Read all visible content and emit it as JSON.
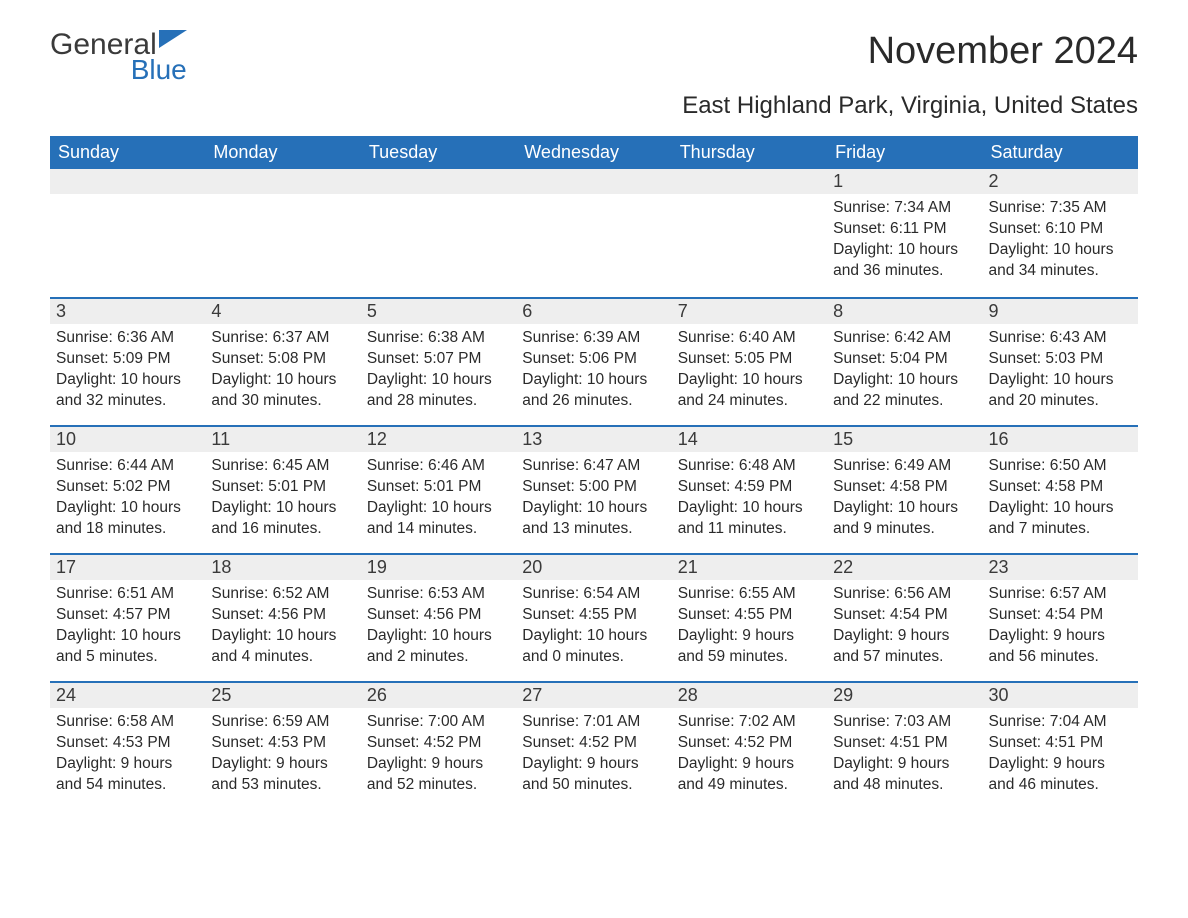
{
  "logo": {
    "line1": "General",
    "line2": "Blue"
  },
  "title": "November 2024",
  "subtitle": "East Highland Park, Virginia, United States",
  "colors": {
    "header_bg": "#2670b8",
    "header_text": "#ffffff",
    "daynum_bg": "#eeeeee",
    "daynum_border": "#2670b8",
    "body_text": "#2a2a2a",
    "logo_gray": "#3a3a3a",
    "logo_blue": "#2670b8",
    "page_bg": "#ffffff"
  },
  "typography": {
    "title_fontsize": 38,
    "subtitle_fontsize": 24,
    "header_fontsize": 18,
    "daynum_fontsize": 18,
    "body_fontsize": 15.5,
    "font_family": "Arial"
  },
  "columns": [
    "Sunday",
    "Monday",
    "Tuesday",
    "Wednesday",
    "Thursday",
    "Friday",
    "Saturday"
  ],
  "weeks": [
    [
      {
        "empty": true
      },
      {
        "empty": true
      },
      {
        "empty": true
      },
      {
        "empty": true
      },
      {
        "empty": true
      },
      {
        "num": "1",
        "sunrise": "Sunrise: 7:34 AM",
        "sunset": "Sunset: 6:11 PM",
        "daylight": "Daylight: 10 hours and 36 minutes."
      },
      {
        "num": "2",
        "sunrise": "Sunrise: 7:35 AM",
        "sunset": "Sunset: 6:10 PM",
        "daylight": "Daylight: 10 hours and 34 minutes."
      }
    ],
    [
      {
        "num": "3",
        "sunrise": "Sunrise: 6:36 AM",
        "sunset": "Sunset: 5:09 PM",
        "daylight": "Daylight: 10 hours and 32 minutes."
      },
      {
        "num": "4",
        "sunrise": "Sunrise: 6:37 AM",
        "sunset": "Sunset: 5:08 PM",
        "daylight": "Daylight: 10 hours and 30 minutes."
      },
      {
        "num": "5",
        "sunrise": "Sunrise: 6:38 AM",
        "sunset": "Sunset: 5:07 PM",
        "daylight": "Daylight: 10 hours and 28 minutes."
      },
      {
        "num": "6",
        "sunrise": "Sunrise: 6:39 AM",
        "sunset": "Sunset: 5:06 PM",
        "daylight": "Daylight: 10 hours and 26 minutes."
      },
      {
        "num": "7",
        "sunrise": "Sunrise: 6:40 AM",
        "sunset": "Sunset: 5:05 PM",
        "daylight": "Daylight: 10 hours and 24 minutes."
      },
      {
        "num": "8",
        "sunrise": "Sunrise: 6:42 AM",
        "sunset": "Sunset: 5:04 PM",
        "daylight": "Daylight: 10 hours and 22 minutes."
      },
      {
        "num": "9",
        "sunrise": "Sunrise: 6:43 AM",
        "sunset": "Sunset: 5:03 PM",
        "daylight": "Daylight: 10 hours and 20 minutes."
      }
    ],
    [
      {
        "num": "10",
        "sunrise": "Sunrise: 6:44 AM",
        "sunset": "Sunset: 5:02 PM",
        "daylight": "Daylight: 10 hours and 18 minutes."
      },
      {
        "num": "11",
        "sunrise": "Sunrise: 6:45 AM",
        "sunset": "Sunset: 5:01 PM",
        "daylight": "Daylight: 10 hours and 16 minutes."
      },
      {
        "num": "12",
        "sunrise": "Sunrise: 6:46 AM",
        "sunset": "Sunset: 5:01 PM",
        "daylight": "Daylight: 10 hours and 14 minutes."
      },
      {
        "num": "13",
        "sunrise": "Sunrise: 6:47 AM",
        "sunset": "Sunset: 5:00 PM",
        "daylight": "Daylight: 10 hours and 13 minutes."
      },
      {
        "num": "14",
        "sunrise": "Sunrise: 6:48 AM",
        "sunset": "Sunset: 4:59 PM",
        "daylight": "Daylight: 10 hours and 11 minutes."
      },
      {
        "num": "15",
        "sunrise": "Sunrise: 6:49 AM",
        "sunset": "Sunset: 4:58 PM",
        "daylight": "Daylight: 10 hours and 9 minutes."
      },
      {
        "num": "16",
        "sunrise": "Sunrise: 6:50 AM",
        "sunset": "Sunset: 4:58 PM",
        "daylight": "Daylight: 10 hours and 7 minutes."
      }
    ],
    [
      {
        "num": "17",
        "sunrise": "Sunrise: 6:51 AM",
        "sunset": "Sunset: 4:57 PM",
        "daylight": "Daylight: 10 hours and 5 minutes."
      },
      {
        "num": "18",
        "sunrise": "Sunrise: 6:52 AM",
        "sunset": "Sunset: 4:56 PM",
        "daylight": "Daylight: 10 hours and 4 minutes."
      },
      {
        "num": "19",
        "sunrise": "Sunrise: 6:53 AM",
        "sunset": "Sunset: 4:56 PM",
        "daylight": "Daylight: 10 hours and 2 minutes."
      },
      {
        "num": "20",
        "sunrise": "Sunrise: 6:54 AM",
        "sunset": "Sunset: 4:55 PM",
        "daylight": "Daylight: 10 hours and 0 minutes."
      },
      {
        "num": "21",
        "sunrise": "Sunrise: 6:55 AM",
        "sunset": "Sunset: 4:55 PM",
        "daylight": "Daylight: 9 hours and 59 minutes."
      },
      {
        "num": "22",
        "sunrise": "Sunrise: 6:56 AM",
        "sunset": "Sunset: 4:54 PM",
        "daylight": "Daylight: 9 hours and 57 minutes."
      },
      {
        "num": "23",
        "sunrise": "Sunrise: 6:57 AM",
        "sunset": "Sunset: 4:54 PM",
        "daylight": "Daylight: 9 hours and 56 minutes."
      }
    ],
    [
      {
        "num": "24",
        "sunrise": "Sunrise: 6:58 AM",
        "sunset": "Sunset: 4:53 PM",
        "daylight": "Daylight: 9 hours and 54 minutes."
      },
      {
        "num": "25",
        "sunrise": "Sunrise: 6:59 AM",
        "sunset": "Sunset: 4:53 PM",
        "daylight": "Daylight: 9 hours and 53 minutes."
      },
      {
        "num": "26",
        "sunrise": "Sunrise: 7:00 AM",
        "sunset": "Sunset: 4:52 PM",
        "daylight": "Daylight: 9 hours and 52 minutes."
      },
      {
        "num": "27",
        "sunrise": "Sunrise: 7:01 AM",
        "sunset": "Sunset: 4:52 PM",
        "daylight": "Daylight: 9 hours and 50 minutes."
      },
      {
        "num": "28",
        "sunrise": "Sunrise: 7:02 AM",
        "sunset": "Sunset: 4:52 PM",
        "daylight": "Daylight: 9 hours and 49 minutes."
      },
      {
        "num": "29",
        "sunrise": "Sunrise: 7:03 AM",
        "sunset": "Sunset: 4:51 PM",
        "daylight": "Daylight: 9 hours and 48 minutes."
      },
      {
        "num": "30",
        "sunrise": "Sunrise: 7:04 AM",
        "sunset": "Sunset: 4:51 PM",
        "daylight": "Daylight: 9 hours and 46 minutes."
      }
    ]
  ]
}
